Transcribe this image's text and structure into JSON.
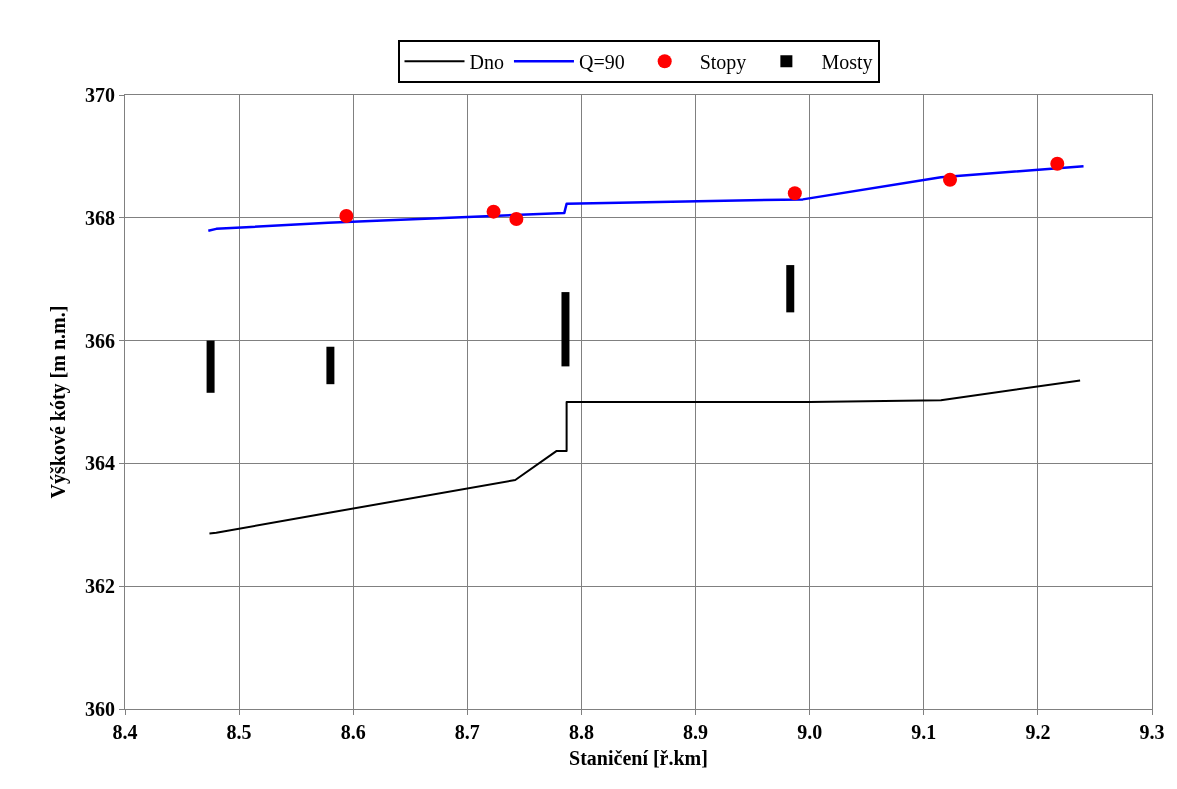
{
  "chart_data": {
    "type": "line",
    "xlabel": "Staničení [ř.km]",
    "ylabel": "Výškové kóty [m n.m.]",
    "xlim": [
      8.4,
      9.3
    ],
    "xticks": [
      {
        "value": 8.4,
        "label": "8.4"
      },
      {
        "value": 8.5,
        "label": "8.5"
      },
      {
        "value": 8.6,
        "label": "8.6"
      },
      {
        "value": 8.7,
        "label": "8.7"
      },
      {
        "value": 8.8,
        "label": "8.8"
      },
      {
        "value": 8.9,
        "label": "8.9"
      },
      {
        "value": 9.0,
        "label": "9.0"
      },
      {
        "value": 9.1,
        "label": "9.1"
      },
      {
        "value": 9.2,
        "label": "9.2"
      },
      {
        "value": 9.3,
        "label": "9.3"
      }
    ],
    "ylim": [
      360,
      370
    ],
    "yticks": [
      360,
      362,
      364,
      366,
      368,
      370
    ],
    "grid": true,
    "legend": "top",
    "series": [
      {
        "name": "Dno",
        "color": "#000000",
        "marker": "none",
        "line_style": "solid",
        "x": [
          8.474,
          8.48,
          8.58,
          8.742,
          8.778,
          8.787,
          8.787,
          8.92,
          9.0,
          9.115,
          9.237
        ],
        "values": [
          362.86,
          362.87,
          363.2,
          363.73,
          364.2,
          364.2,
          365.0,
          365.0,
          365.0,
          365.03,
          365.35
        ]
      },
      {
        "name": "Q=90",
        "color": "#0000ff",
        "marker": "none",
        "line_style": "solid",
        "x": [
          8.473,
          8.48,
          8.578,
          8.785,
          8.787,
          8.994,
          9.115,
          9.24
        ],
        "values": [
          367.79,
          367.82,
          367.92,
          368.08,
          368.23,
          368.3,
          368.66,
          368.84
        ]
      },
      {
        "name": "Stopy",
        "type": "scatter",
        "color": "#ff0000",
        "marker": "circle",
        "x": [
          8.594,
          8.723,
          8.743,
          8.987,
          9.123,
          9.217
        ],
        "values": [
          368.03,
          368.1,
          367.98,
          368.4,
          368.62,
          368.88
        ]
      },
      {
        "name": "Mosty",
        "type": "bar",
        "color": "#000000",
        "x": [
          8.475,
          8.58,
          8.786,
          8.983
        ],
        "base": [
          365.15,
          365.29,
          365.58,
          366.46
        ],
        "values": [
          0.85,
          0.61,
          1.21,
          0.77
        ]
      }
    ]
  }
}
